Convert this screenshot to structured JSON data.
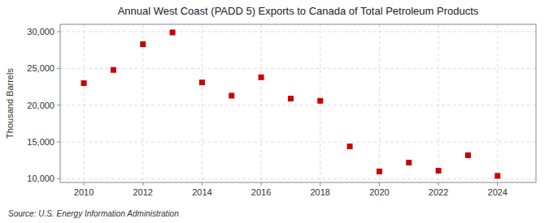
{
  "chart_data": {
    "type": "scatter",
    "title": "Annual West Coast (PADD 5) Exports to Canada of Total Petroleum Products",
    "y_label": "Thousand Barrels",
    "annotations": [
      "Source: U.S. Energy Information Administration"
    ],
    "x": [
      2010,
      2011,
      2012,
      2013,
      2014,
      2015,
      2016,
      2017,
      2018,
      2019,
      2020,
      2021,
      2022,
      2023,
      2024
    ],
    "values": [
      23000,
      24800,
      28300,
      29900,
      23100,
      21300,
      23800,
      20900,
      20600,
      14400,
      11000,
      12200,
      11100,
      13200,
      10400
    ],
    "color": "#cc0000",
    "marker": "square",
    "xlim": [
      2009.2,
      2025.3
    ],
    "xticks": [
      2010,
      2012,
      2014,
      2016,
      2018,
      2020,
      2022,
      2024
    ],
    "ylim": [
      9500,
      31000
    ],
    "yticks": [
      {
        "value": 10000,
        "label": "10,000"
      },
      {
        "value": 15000,
        "label": "15,000"
      },
      {
        "value": 20000,
        "label": "20,000"
      },
      {
        "value": 25000,
        "label": "25,000"
      },
      {
        "value": 30000,
        "label": "30,000"
      }
    ],
    "grid": true
  }
}
